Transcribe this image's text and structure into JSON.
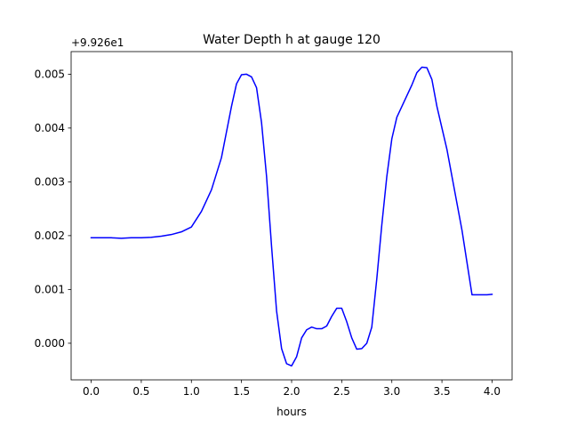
{
  "chart_data": {
    "type": "line",
    "title": "Water Depth h at gauge 120",
    "xlabel": "hours",
    "ylabel": "",
    "offset_text": "+9.926e1",
    "xlim": [
      -0.2,
      4.2
    ],
    "ylim": [
      -0.00068,
      0.00542
    ],
    "xticks": [
      0.0,
      0.5,
      1.0,
      1.5,
      2.0,
      2.5,
      3.0,
      3.5,
      4.0
    ],
    "xtick_labels": [
      "0.0",
      "0.5",
      "1.0",
      "1.5",
      "2.0",
      "2.5",
      "3.0",
      "3.5",
      "4.0"
    ],
    "yticks": [
      0.0,
      0.001,
      0.002,
      0.003,
      0.004,
      0.005
    ],
    "ytick_labels": [
      "0.000",
      "0.001",
      "0.002",
      "0.003",
      "0.004",
      "0.005"
    ],
    "grid": false,
    "series": [
      {
        "name": "",
        "color": "#0000ff",
        "x": [
          0.0,
          0.1,
          0.2,
          0.3,
          0.4,
          0.5,
          0.6,
          0.7,
          0.8,
          0.9,
          1.0,
          1.1,
          1.2,
          1.3,
          1.4,
          1.45,
          1.5,
          1.55,
          1.6,
          1.65,
          1.7,
          1.75,
          1.8,
          1.85,
          1.9,
          1.95,
          2.0,
          2.05,
          2.1,
          2.15,
          2.2,
          2.25,
          2.3,
          2.35,
          2.4,
          2.45,
          2.5,
          2.55,
          2.6,
          2.65,
          2.7,
          2.75,
          2.8,
          2.85,
          2.9,
          2.95,
          3.0,
          3.05,
          3.1,
          3.15,
          3.2,
          3.25,
          3.3,
          3.35,
          3.4,
          3.45,
          3.5,
          3.55,
          3.6,
          3.65,
          3.7,
          3.75,
          3.8,
          3.85,
          3.9,
          3.95,
          4.0
        ],
        "y": [
          0.00196,
          0.00196,
          0.00196,
          0.00195,
          0.00196,
          0.00196,
          0.00197,
          0.00199,
          0.00202,
          0.00207,
          0.00216,
          0.00245,
          0.00285,
          0.00345,
          0.0044,
          0.00482,
          0.00499,
          0.005,
          0.00495,
          0.00475,
          0.0041,
          0.0031,
          0.0018,
          0.0006,
          -0.0001,
          -0.00038,
          -0.00042,
          -0.00025,
          0.0001,
          0.00025,
          0.0003,
          0.00027,
          0.00027,
          0.00032,
          0.0005,
          0.00065,
          0.00065,
          0.0004,
          0.0001,
          -0.00011,
          -0.0001,
          0.0,
          0.0003,
          0.0012,
          0.0022,
          0.0031,
          0.0038,
          0.0042,
          0.0044,
          0.0046,
          0.0048,
          0.00503,
          0.00513,
          0.00512,
          0.0049,
          0.0044,
          0.004,
          0.0036,
          0.0031,
          0.0026,
          0.0021,
          0.0015,
          0.0009,
          0.0009,
          0.0009,
          0.0009,
          0.00091
        ]
      }
    ]
  }
}
